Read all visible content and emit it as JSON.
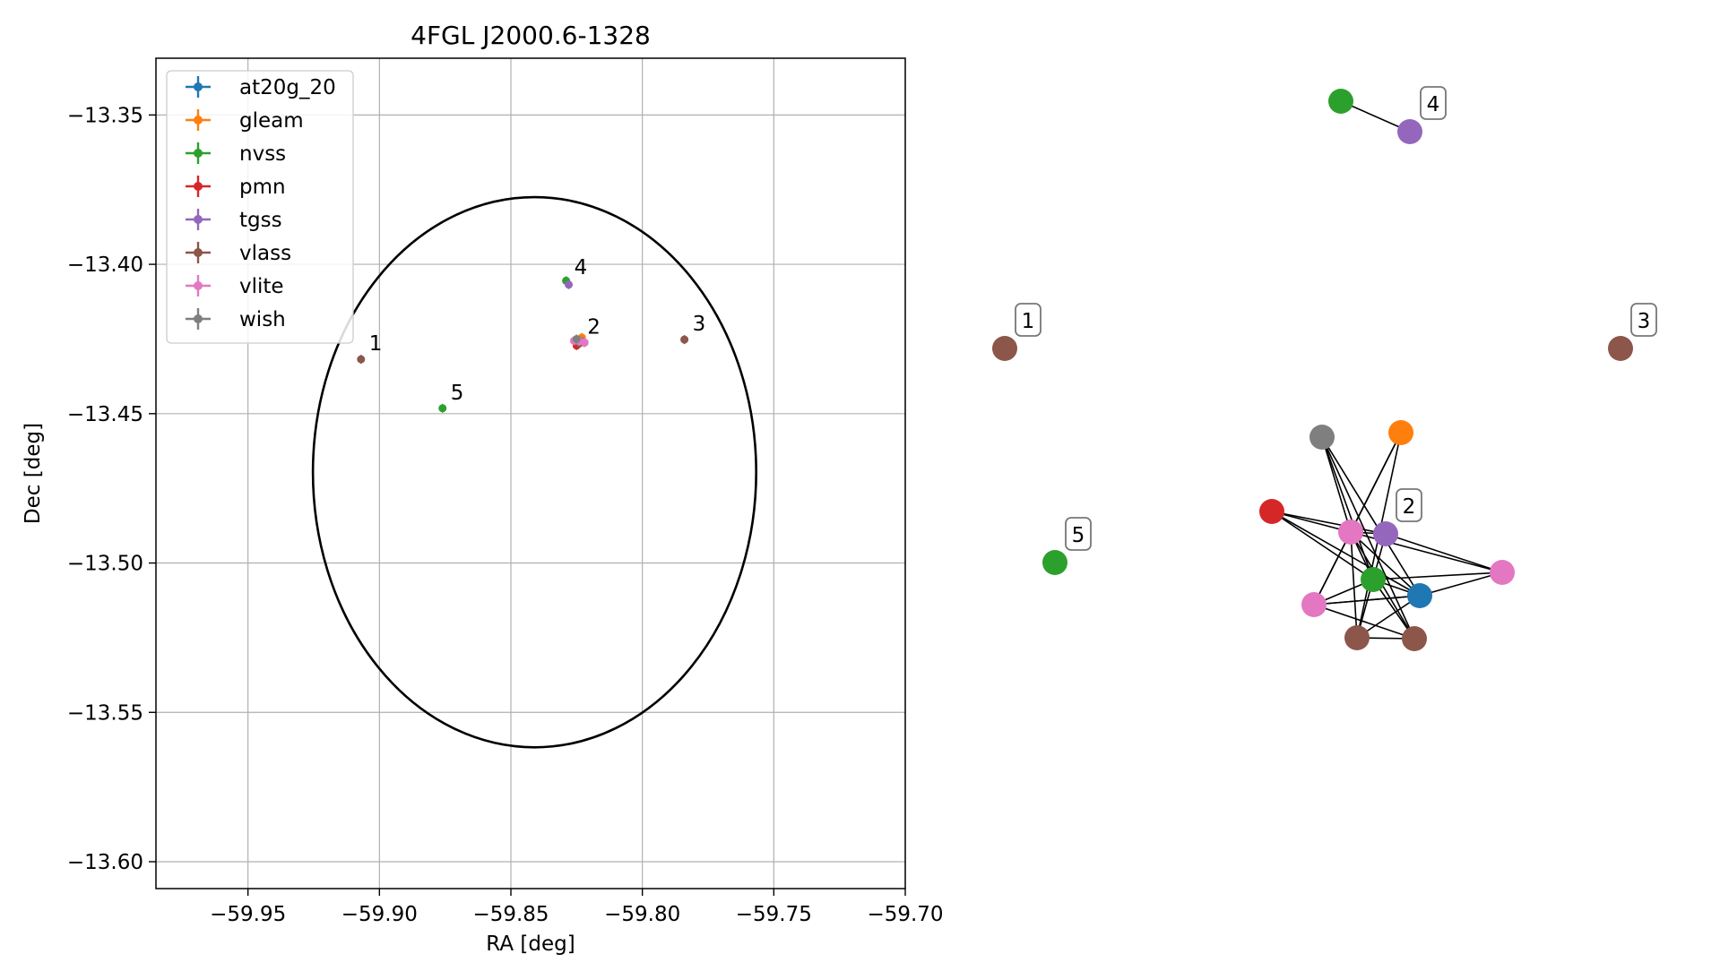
{
  "chart_data": [
    {
      "type": "scatter",
      "title": "4FGL J2000.6-1328",
      "xlabel": "RA [deg]",
      "ylabel": "Dec [deg]",
      "xlim": [
        -59.985,
        -59.7
      ],
      "ylim": [
        -13.609,
        -13.331
      ],
      "xticks": [
        -59.95,
        -59.9,
        -59.85,
        -59.8,
        -59.75,
        -59.7
      ],
      "xtick_labels": [
        "−59.95",
        "−59.90",
        "−59.85",
        "−59.80",
        "−59.75",
        "−59.70"
      ],
      "yticks": [
        -13.35,
        -13.4,
        -13.45,
        -13.5,
        -13.55,
        -13.6
      ],
      "ytick_labels": [
        "−13.35",
        "−13.40",
        "−13.45",
        "−13.50",
        "−13.55",
        "−13.60"
      ],
      "grid": true,
      "legend_position": "top-left",
      "ellipse": {
        "center_ra": -59.841,
        "center_dec": -13.4696,
        "half_width_ra": 0.0843,
        "half_height_dec": 0.0921,
        "color": "#000000"
      },
      "series": [
        {
          "name": "at20g_20",
          "color": "#1f77b4",
          "points": []
        },
        {
          "name": "gleam",
          "color": "#ff7f0e",
          "points": [
            [
              -59.823,
              -13.4245
            ]
          ]
        },
        {
          "name": "nvss",
          "color": "#2ca02c",
          "points": [
            [
              -59.829,
              -13.4055
            ],
            [
              -59.876,
              -13.4482
            ],
            [
              -59.824,
              -13.4262
            ]
          ]
        },
        {
          "name": "pmn",
          "color": "#d62728",
          "points": [
            [
              -59.825,
              -13.4272
            ]
          ]
        },
        {
          "name": "tgss",
          "color": "#9467bd",
          "points": [
            [
              -59.828,
              -13.4068
            ],
            [
              -59.823,
              -13.4258
            ]
          ]
        },
        {
          "name": "vlass",
          "color": "#8c564b",
          "points": [
            [
              -59.907,
              -13.4318
            ],
            [
              -59.784,
              -13.4252
            ],
            [
              -59.824,
              -13.4265
            ],
            [
              -59.822,
              -13.4262
            ]
          ]
        },
        {
          "name": "vlite",
          "color": "#e377c2",
          "points": [
            [
              -59.824,
              -13.4258
            ],
            [
              -59.822,
              -13.4262
            ],
            [
              -59.826,
              -13.4256
            ]
          ]
        },
        {
          "name": "wish",
          "color": "#7f7f7f",
          "points": [
            [
              -59.825,
              -13.425
            ]
          ]
        }
      ],
      "annotations": [
        {
          "text": "1",
          "ra": -59.907,
          "dec": -13.4318
        },
        {
          "text": "2",
          "ra": -59.824,
          "dec": -13.4262
        },
        {
          "text": "3",
          "ra": -59.784,
          "dec": -13.4252
        },
        {
          "text": "4",
          "ra": -59.829,
          "dec": -13.4062
        },
        {
          "text": "5",
          "ra": -59.876,
          "dec": -13.4482
        }
      ]
    },
    {
      "type": "network",
      "nodes": [
        {
          "id": "n4a",
          "color": "#2ca02c"
        },
        {
          "id": "n4b",
          "color": "#9467bd"
        },
        {
          "id": "n1",
          "color": "#8c564b"
        },
        {
          "id": "n3",
          "color": "#8c564b"
        },
        {
          "id": "n5",
          "color": "#2ca02c"
        },
        {
          "id": "g_grey",
          "color": "#7f7f7f"
        },
        {
          "id": "g_orange",
          "color": "#ff7f0e"
        },
        {
          "id": "g_red",
          "color": "#d62728"
        },
        {
          "id": "g_pink1",
          "color": "#e377c2"
        },
        {
          "id": "g_purple",
          "color": "#9467bd"
        },
        {
          "id": "g_pink2",
          "color": "#e377c2"
        },
        {
          "id": "g_green",
          "color": "#2ca02c"
        },
        {
          "id": "g_blue",
          "color": "#1f77b4"
        },
        {
          "id": "g_pink3",
          "color": "#e377c2"
        },
        {
          "id": "g_brown1",
          "color": "#8c564b"
        },
        {
          "id": "g_brown2",
          "color": "#8c564b"
        }
      ],
      "edges": [
        [
          "n4a",
          "n4b"
        ],
        [
          "g_grey",
          "g_pink1"
        ],
        [
          "g_grey",
          "g_green"
        ],
        [
          "g_grey",
          "g_blue"
        ],
        [
          "g_grey",
          "g_brown2"
        ],
        [
          "g_orange",
          "g_pink1"
        ],
        [
          "g_orange",
          "g_pink3"
        ],
        [
          "g_orange",
          "g_brown1"
        ],
        [
          "g_red",
          "g_pink1"
        ],
        [
          "g_red",
          "g_purple"
        ],
        [
          "g_red",
          "g_blue"
        ],
        [
          "g_red",
          "g_green"
        ],
        [
          "g_pink1",
          "g_purple"
        ],
        [
          "g_pink1",
          "g_green"
        ],
        [
          "g_pink1",
          "g_pink3"
        ],
        [
          "g_pink1",
          "g_brown1"
        ],
        [
          "g_pink1",
          "g_blue"
        ],
        [
          "g_pink1",
          "g_brown2"
        ],
        [
          "g_purple",
          "g_pink2"
        ],
        [
          "g_purple",
          "g_brown1"
        ],
        [
          "g_green",
          "g_pink3"
        ],
        [
          "g_green",
          "g_brown2"
        ],
        [
          "g_green",
          "g_blue"
        ],
        [
          "g_green",
          "g_pink2"
        ],
        [
          "g_blue",
          "g_pink2"
        ],
        [
          "g_blue",
          "g_brown1"
        ],
        [
          "g_blue",
          "g_pink3"
        ],
        [
          "g_pink3",
          "g_brown2"
        ],
        [
          "g_pink3",
          "g_blue"
        ],
        [
          "g_brown1",
          "g_brown2"
        ],
        [
          "g_pink1",
          "g_pink2"
        ]
      ],
      "labels": [
        {
          "text": "1",
          "node": "n1"
        },
        {
          "text": "2",
          "node": "g_purple"
        },
        {
          "text": "3",
          "node": "n3"
        },
        {
          "text": "4",
          "node": "n4b"
        },
        {
          "text": "5",
          "node": "n5"
        }
      ]
    }
  ]
}
